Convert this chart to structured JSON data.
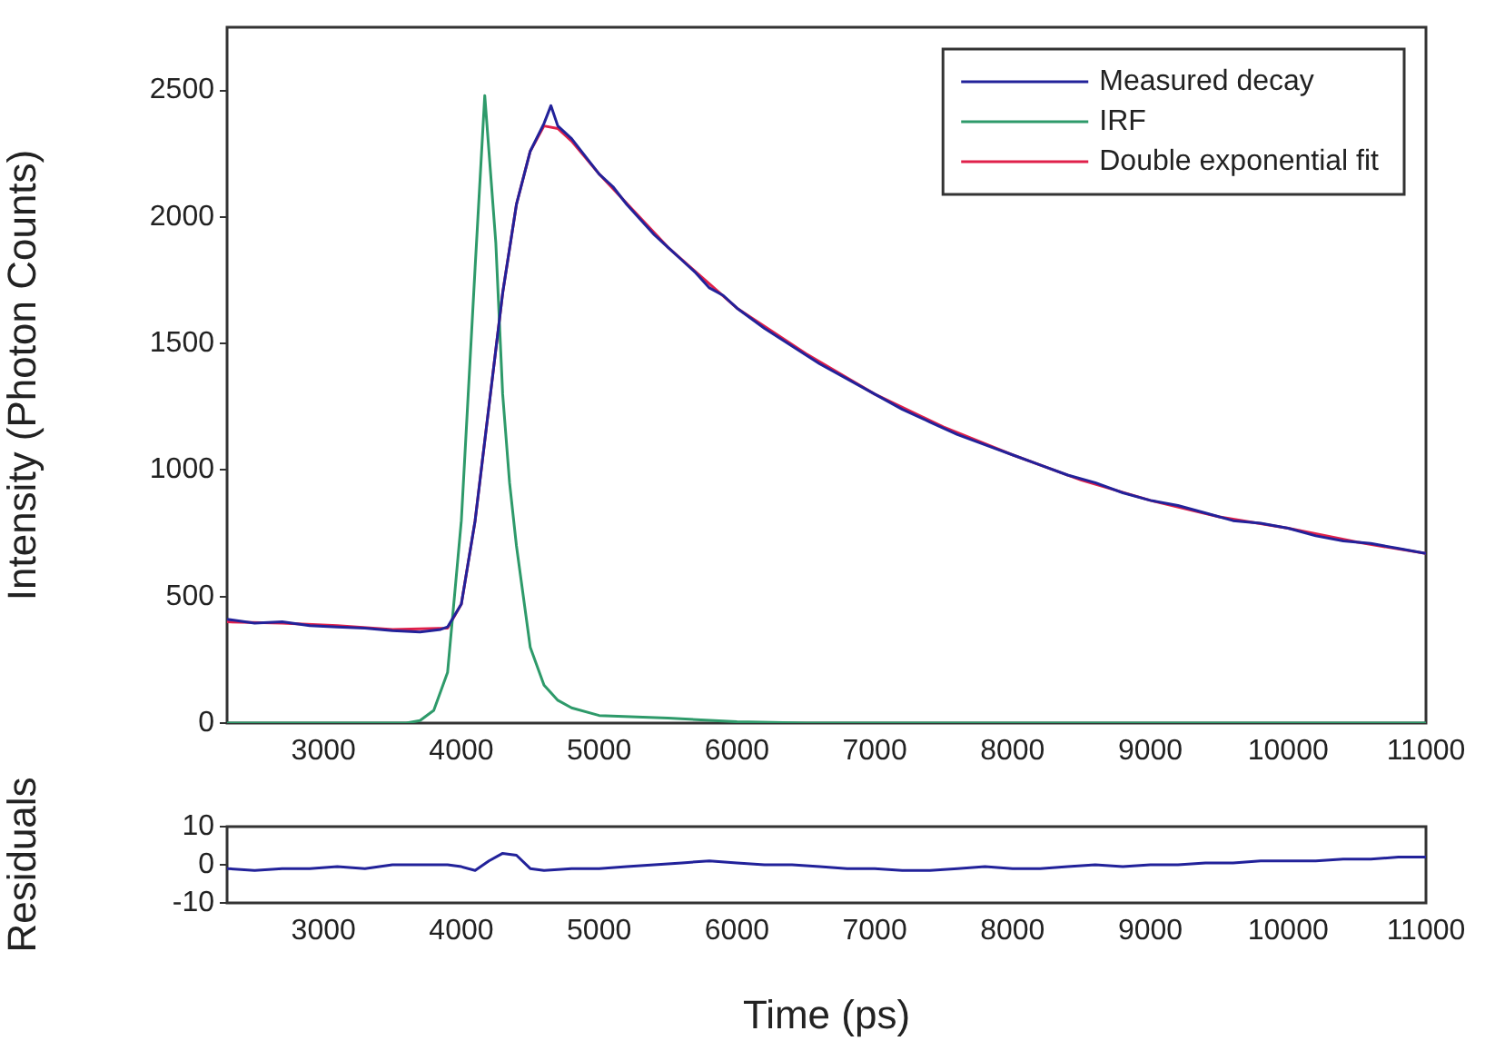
{
  "chart_data": [
    {
      "type": "line",
      "ylabel": "Intensity (Photon Counts)",
      "xlim": [
        2300,
        11000
      ],
      "ylim": [
        0,
        2750
      ],
      "xticks": [
        3000,
        4000,
        5000,
        6000,
        7000,
        8000,
        9000,
        10000,
        11000
      ],
      "yticks": [
        0,
        500,
        1000,
        1500,
        2000,
        2500
      ],
      "legend": "top right",
      "series": [
        {
          "name": "Measured decay",
          "color": "#22229a",
          "x": [
            2300,
            2500,
            2700,
            2900,
            3100,
            3300,
            3500,
            3700,
            3850,
            3900,
            4000,
            4100,
            4200,
            4300,
            4400,
            4500,
            4600,
            4650,
            4700,
            4800,
            4900,
            5000,
            5100,
            5200,
            5300,
            5400,
            5500,
            5600,
            5700,
            5800,
            5900,
            6000,
            6200,
            6400,
            6600,
            6800,
            7000,
            7200,
            7400,
            7600,
            7800,
            8000,
            8200,
            8400,
            8600,
            8800,
            9000,
            9200,
            9400,
            9600,
            9800,
            10000,
            10200,
            10400,
            10600,
            10800,
            11000
          ],
          "values": [
            410,
            395,
            400,
            385,
            380,
            375,
            365,
            360,
            370,
            380,
            470,
            800,
            1250,
            1700,
            2050,
            2260,
            2370,
            2440,
            2360,
            2310,
            2240,
            2170,
            2120,
            2050,
            1990,
            1930,
            1880,
            1830,
            1780,
            1720,
            1690,
            1640,
            1560,
            1490,
            1420,
            1360,
            1300,
            1240,
            1190,
            1140,
            1100,
            1060,
            1020,
            980,
            950,
            910,
            880,
            860,
            830,
            800,
            790,
            770,
            740,
            720,
            710,
            690,
            670
          ]
        },
        {
          "name": "IRF",
          "color": "#2e9a6a",
          "x": [
            2300,
            3600,
            3700,
            3800,
            3900,
            4000,
            4050,
            4100,
            4170,
            4250,
            4300,
            4350,
            4400,
            4500,
            4600,
            4700,
            4800,
            5000,
            5500,
            6000,
            6500,
            11000
          ],
          "values": [
            0,
            0,
            10,
            50,
            200,
            800,
            1300,
            1800,
            2480,
            1900,
            1300,
            950,
            700,
            300,
            150,
            90,
            60,
            30,
            20,
            5,
            0,
            0
          ]
        },
        {
          "name": "Double exponential fit",
          "color": "#e0204a",
          "x": [
            2300,
            2700,
            3100,
            3500,
            3900,
            4000,
            4100,
            4200,
            4300,
            4400,
            4500,
            4600,
            4700,
            4800,
            5000,
            5500,
            6000,
            6500,
            7000,
            7500,
            8000,
            8500,
            9000,
            9500,
            10000,
            10500,
            11000
          ],
          "values": [
            400,
            395,
            385,
            370,
            375,
            470,
            800,
            1250,
            1700,
            2050,
            2260,
            2360,
            2350,
            2300,
            2170,
            1880,
            1640,
            1460,
            1300,
            1170,
            1060,
            960,
            880,
            815,
            770,
            715,
            670
          ]
        }
      ]
    },
    {
      "type": "line",
      "xlabel": "Time (ps)",
      "ylabel": "Residuals",
      "xlim": [
        2300,
        11000
      ],
      "ylim": [
        -10,
        10
      ],
      "xticks": [
        3000,
        4000,
        5000,
        6000,
        7000,
        8000,
        9000,
        10000,
        11000
      ],
      "yticks": [
        -10,
        0,
        10
      ],
      "series": [
        {
          "color": "#22229a",
          "x": [
            2300,
            2500,
            2700,
            2900,
            3100,
            3300,
            3500,
            3700,
            3900,
            4000,
            4100,
            4200,
            4300,
            4400,
            4500,
            4600,
            4800,
            5000,
            5200,
            5400,
            5600,
            5800,
            6000,
            6200,
            6400,
            6600,
            6800,
            7000,
            7200,
            7400,
            7600,
            7800,
            8000,
            8200,
            8400,
            8600,
            8800,
            9000,
            9200,
            9400,
            9600,
            9800,
            10000,
            10200,
            10400,
            10600,
            10800,
            11000
          ],
          "values": [
            -1,
            -1.5,
            -1,
            -1,
            -0.5,
            -1,
            0,
            0,
            0,
            -0.5,
            -1.5,
            1,
            3,
            2.5,
            -1,
            -1.5,
            -1,
            -1,
            -0.5,
            0,
            0.5,
            1,
            0.5,
            0,
            0,
            -0.5,
            -1,
            -1,
            -1.5,
            -1.5,
            -1,
            -0.5,
            -1,
            -1,
            -0.5,
            0,
            -0.5,
            0,
            0,
            0.5,
            0.5,
            1,
            1,
            1,
            1.5,
            1.5,
            2,
            2
          ]
        }
      ]
    }
  ]
}
